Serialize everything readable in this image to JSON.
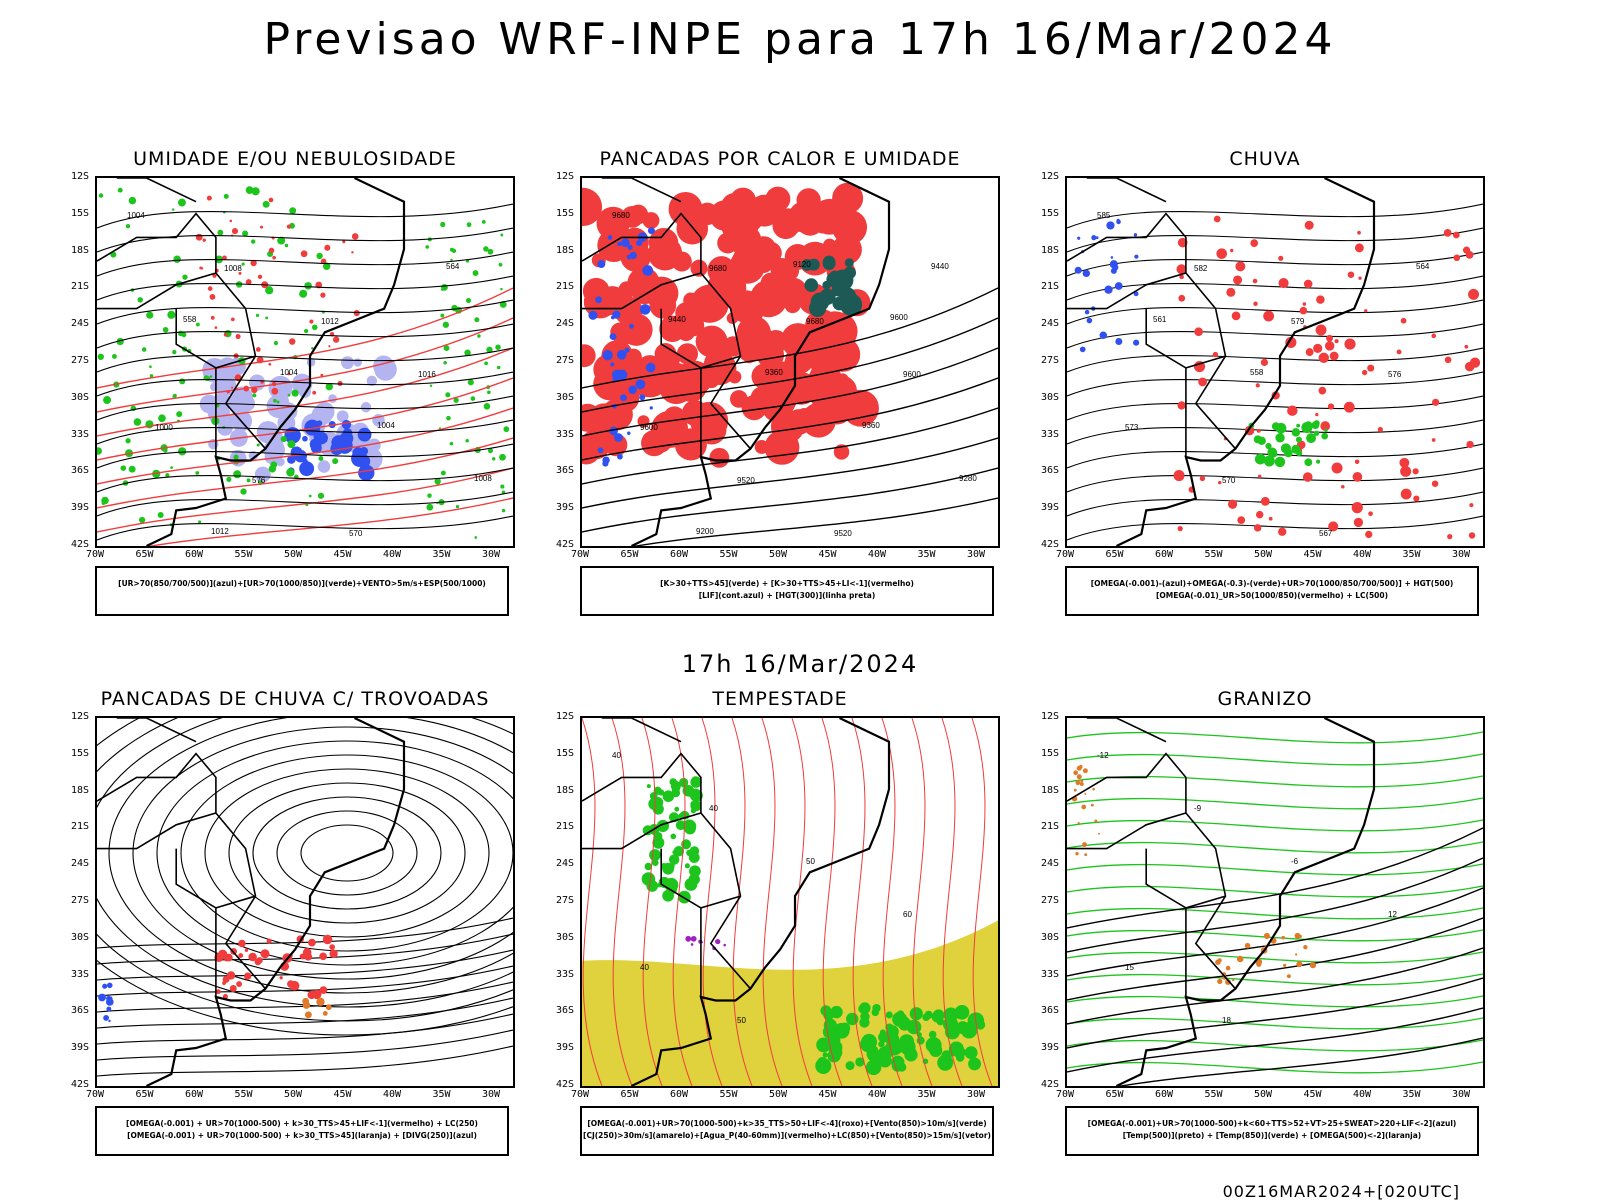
{
  "title": "Previsao WRF-INPE  para 17h 16/Mar/2024",
  "mid_title": "17h 16/Mar/2024",
  "run_stamp": "00Z16MAR2024+[020UTC]",
  "lat_labels": [
    "12S",
    "15S",
    "18S",
    "21S",
    "24S",
    "27S",
    "30S",
    "33S",
    "36S",
    "39S",
    "42S"
  ],
  "lon_labels": [
    "70W",
    "65W",
    "60W",
    "55W",
    "50W",
    "45W",
    "40W",
    "35W",
    "30W"
  ],
  "colors": {
    "red": "#f03c3c",
    "green": "#1cc41c",
    "blue": "#3050f0",
    "lavender": "#b4b4f0",
    "darkteal": "#1e5a55",
    "yellow": "#e0d23c",
    "orange": "#e07a28",
    "purple": "#a020c0"
  },
  "panels": [
    {
      "id": "umidade",
      "title": "UMIDADE E/OU NEBULOSIDADE",
      "caption_lines": [
        "[UR>70(850/700/500)](azul)+[UR>70(1000/850)](verde)+VENTO>5m/s+ESP(500/1000)"
      ],
      "contour_labels": [
        "1004",
        "1008",
        "1012",
        "1016",
        "1000",
        "576",
        "570",
        "564",
        "558",
        "1004",
        "1004",
        "1008",
        "1012"
      ]
    },
    {
      "id": "pancadas-calor",
      "title": "PANCADAS POR CALOR E UMIDADE",
      "caption_lines": [
        "[K>30+TTS>45](verde) + [K>30+TTS>45+LI<-1](vermelho)",
        "[LIF](cont.azul) + [HGT(300)](linha preta)"
      ],
      "contour_labels": [
        "9680",
        "9680",
        "9680",
        "9600",
        "9600",
        "9520",
        "9520",
        "9440",
        "9440",
        "9360",
        "9360",
        "9280",
        "9200",
        "9120",
        "9600"
      ]
    },
    {
      "id": "chuva",
      "title": "CHUVA",
      "caption_lines": [
        "[OMEGA(-0.001)-(azul)+OMEGA(-0.3)-(verde)+UR>70(1000/850/700/500)] + HGT(500)",
        "[OMEGA(-0.01)_UR>50(1000/850)(vermelho) + LC(500)"
      ],
      "contour_labels": [
        "585",
        "582",
        "579",
        "576",
        "573",
        "570",
        "567",
        "564",
        "561",
        "558"
      ]
    },
    {
      "id": "pancadas-trovoadas",
      "title": "PANCADAS DE CHUVA C/ TROVOADAS",
      "caption_lines": [
        "[OMEGA(-0.001) + UR>70(1000-500) + k>30_TTS>45+LIF<-1](vermelho) + LC(250)",
        "[OMEGA(-0.001) + UR>70(1000-500) + k>30_TTS>45](laranja) + [DIVG(250)](azul)"
      ],
      "contour_labels": []
    },
    {
      "id": "tempestade",
      "title": "TEMPESTADE",
      "caption_lines": [
        "[OMEGA(-0.001)+UR>70(1000-500)+k>35_TTS>50+LIF<-4](roxo)+[Vento(850)>10m/s](verde)",
        "[CJ(250)>30m/s](amarelo)+[Agua_P(40-60mm)](vermelho)+LC(850)+[Vento(850)>15m/s](vetor)"
      ],
      "contour_labels": [
        "40",
        "40",
        "50",
        "60",
        "40",
        "50"
      ]
    },
    {
      "id": "granizo",
      "title": "GRANIZO",
      "caption_lines": [
        "[OMEGA(-0.001)+UR>70(1000-500)+k<60+TTS>52+VT>25+SWEAT>220+LIF<-2](azul)",
        "[Temp(500)](preto) + [Temp(850)](verde) + [OMEGA(500)<-2](laranja)"
      ],
      "contour_labels": [
        "-12",
        "-9",
        "-6",
        "12",
        "15",
        "18"
      ]
    }
  ]
}
